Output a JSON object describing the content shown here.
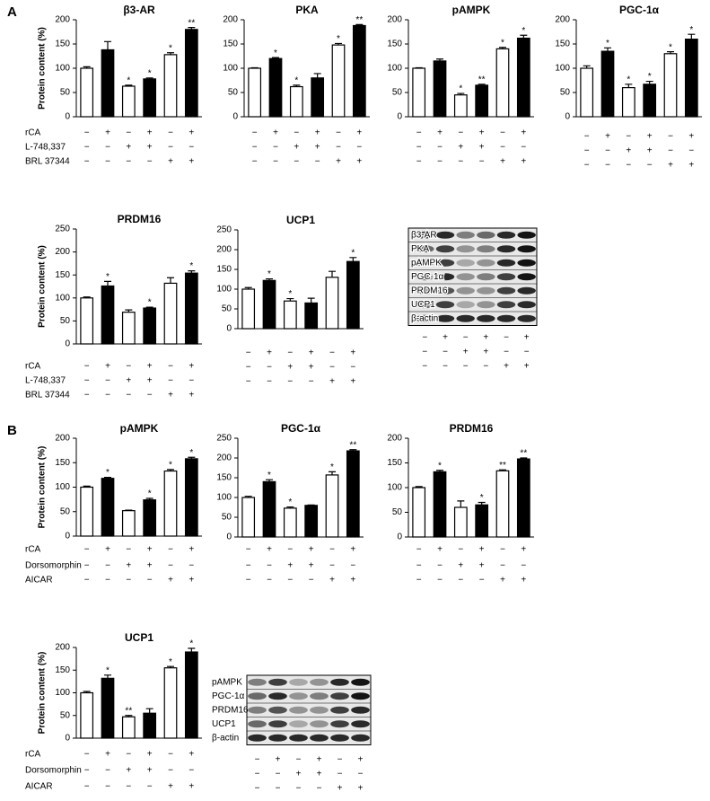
{
  "panels": [
    {
      "label": "A",
      "treatments": [
        {
          "name": "rCA",
          "signs": [
            "−",
            "+",
            "−",
            "+",
            "−",
            "+"
          ]
        },
        {
          "name": "L-748,337",
          "signs": [
            "−",
            "−",
            "+",
            "+",
            "−",
            "−"
          ]
        },
        {
          "name": "BRL 37344",
          "signs": [
            "−",
            "−",
            "−",
            "−",
            "+",
            "+"
          ]
        }
      ],
      "blot_labels": [
        "β3-AR",
        "PKA",
        "pAMPK",
        "PGC-1α",
        "PRDM16",
        "UCP1",
        "β-actin"
      ]
    },
    {
      "label": "B",
      "treatments": [
        {
          "name": "rCA",
          "signs": [
            "−",
            "+",
            "−",
            "+",
            "−",
            "+"
          ]
        },
        {
          "name": "Dorsomorphin",
          "signs": [
            "−",
            "−",
            "+",
            "+",
            "−",
            "−"
          ]
        },
        {
          "name": "AICAR",
          "signs": [
            "−",
            "−",
            "−",
            "−",
            "+",
            "+"
          ]
        }
      ],
      "blot_labels": [
        "pAMPK",
        "PGC-1α",
        "PRDM16",
        "UCP1",
        "β-actin"
      ]
    }
  ],
  "chart_data": [
    {
      "type": "bar",
      "title": "β3-AR",
      "ylabel": "Protein content (%)",
      "values": [
        100,
        138,
        63,
        78,
        128,
        180
      ],
      "errors": [
        3,
        17,
        2,
        2,
        4,
        4
      ],
      "annotations": [
        null,
        null,
        "*",
        "*",
        "*",
        "**"
      ],
      "colors": [
        "#ffffff",
        "#000000",
        "#ffffff",
        "#000000",
        "#ffffff",
        "#000000"
      ],
      "ylim": [
        0,
        200
      ],
      "yticks": [
        0,
        50,
        100,
        150,
        200
      ]
    },
    {
      "type": "bar",
      "title": "PKA",
      "values": [
        100,
        120,
        62,
        80,
        148,
        188
      ],
      "errors": [
        1,
        2,
        3,
        9,
        3,
        2
      ],
      "annotations": [
        null,
        "*",
        "*",
        null,
        "*",
        "**"
      ],
      "colors": [
        "#ffffff",
        "#000000",
        "#ffffff",
        "#000000",
        "#ffffff",
        "#000000"
      ],
      "ylim": [
        0,
        200
      ],
      "yticks": [
        0,
        50,
        100,
        150,
        200
      ]
    },
    {
      "type": "bar",
      "title": "pAMPK",
      "values": [
        100,
        115,
        45,
        65,
        140,
        162
      ],
      "errors": [
        1,
        4,
        3,
        2,
        3,
        6
      ],
      "annotations": [
        null,
        null,
        "*",
        "**",
        "*",
        "*"
      ],
      "colors": [
        "#ffffff",
        "#000000",
        "#ffffff",
        "#000000",
        "#ffffff",
        "#000000"
      ],
      "ylim": [
        0,
        200
      ],
      "yticks": [
        0,
        50,
        100,
        150,
        200
      ]
    },
    {
      "type": "bar",
      "title": "PGC-1α",
      "values": [
        100,
        135,
        60,
        67,
        130,
        160
      ],
      "errors": [
        5,
        7,
        7,
        6,
        4,
        10
      ],
      "annotations": [
        null,
        "*",
        "*",
        "*",
        "*",
        "*"
      ],
      "colors": [
        "#ffffff",
        "#000000",
        "#ffffff",
        "#000000",
        "#ffffff",
        "#000000"
      ],
      "ylim": [
        0,
        200
      ],
      "yticks": [
        0,
        50,
        100,
        150,
        200
      ]
    },
    {
      "type": "bar",
      "title": "PRDM16",
      "ylabel": "Protein content (%)",
      "values": [
        100,
        126,
        69,
        78,
        132,
        154
      ],
      "errors": [
        2,
        10,
        5,
        2,
        12,
        5
      ],
      "annotations": [
        null,
        "*",
        null,
        "*",
        null,
        "*"
      ],
      "colors": [
        "#ffffff",
        "#000000",
        "#ffffff",
        "#000000",
        "#ffffff",
        "#000000"
      ],
      "ylim": [
        0,
        250
      ],
      "yticks": [
        0,
        50,
        100,
        150,
        200,
        250
      ]
    },
    {
      "type": "bar",
      "title": "UCP1",
      "values": [
        100,
        122,
        70,
        65,
        130,
        170
      ],
      "errors": [
        4,
        4,
        6,
        12,
        15,
        10
      ],
      "annotations": [
        null,
        "*",
        "*",
        null,
        null,
        "*"
      ],
      "colors": [
        "#ffffff",
        "#000000",
        "#ffffff",
        "#000000",
        "#ffffff",
        "#000000"
      ],
      "ylim": [
        0,
        250
      ],
      "yticks": [
        0,
        50,
        100,
        150,
        200,
        250
      ]
    },
    {
      "type": "bar",
      "title": "pAMPK",
      "ylabel": "Protein content (%)",
      "values": [
        100,
        118,
        52,
        74,
        133,
        158
      ],
      "errors": [
        2,
        2,
        1,
        3,
        3,
        3
      ],
      "annotations": [
        null,
        "*",
        null,
        "*",
        "*",
        "*"
      ],
      "colors": [
        "#ffffff",
        "#000000",
        "#ffffff",
        "#000000",
        "#ffffff",
        "#000000"
      ],
      "ylim": [
        0,
        200
      ],
      "yticks": [
        0,
        50,
        100,
        150,
        200
      ]
    },
    {
      "type": "bar",
      "title": "PGC-1α",
      "values": [
        100,
        140,
        73,
        80,
        157,
        218
      ],
      "errors": [
        3,
        5,
        3,
        1,
        8,
        3
      ],
      "annotations": [
        null,
        "*",
        "*",
        null,
        "*",
        "**"
      ],
      "colors": [
        "#ffffff",
        "#000000",
        "#ffffff",
        "#000000",
        "#ffffff",
        "#000000"
      ],
      "ylim": [
        0,
        250
      ],
      "yticks": [
        0,
        50,
        100,
        150,
        200,
        250
      ]
    },
    {
      "type": "bar",
      "title": "PRDM16",
      "values": [
        100,
        132,
        60,
        65,
        134,
        158
      ],
      "errors": [
        2,
        3,
        13,
        5,
        2,
        2
      ],
      "annotations": [
        null,
        "*",
        null,
        "*",
        "**",
        "**"
      ],
      "colors": [
        "#ffffff",
        "#000000",
        "#ffffff",
        "#000000",
        "#ffffff",
        "#000000"
      ],
      "ylim": [
        0,
        200
      ],
      "yticks": [
        0,
        50,
        100,
        150,
        200
      ]
    },
    {
      "type": "bar",
      "title": "UCP1",
      "ylabel": "Protein content (%)",
      "values": [
        100,
        132,
        47,
        55,
        155,
        190
      ],
      "errors": [
        3,
        7,
        3,
        10,
        3,
        8
      ],
      "annotations": [
        null,
        "*",
        "**",
        null,
        "*",
        "*"
      ],
      "colors": [
        "#ffffff",
        "#000000",
        "#ffffff",
        "#000000",
        "#ffffff",
        "#000000"
      ],
      "ylim": [
        0,
        200
      ],
      "yticks": [
        0,
        50,
        100,
        150,
        200
      ]
    }
  ]
}
